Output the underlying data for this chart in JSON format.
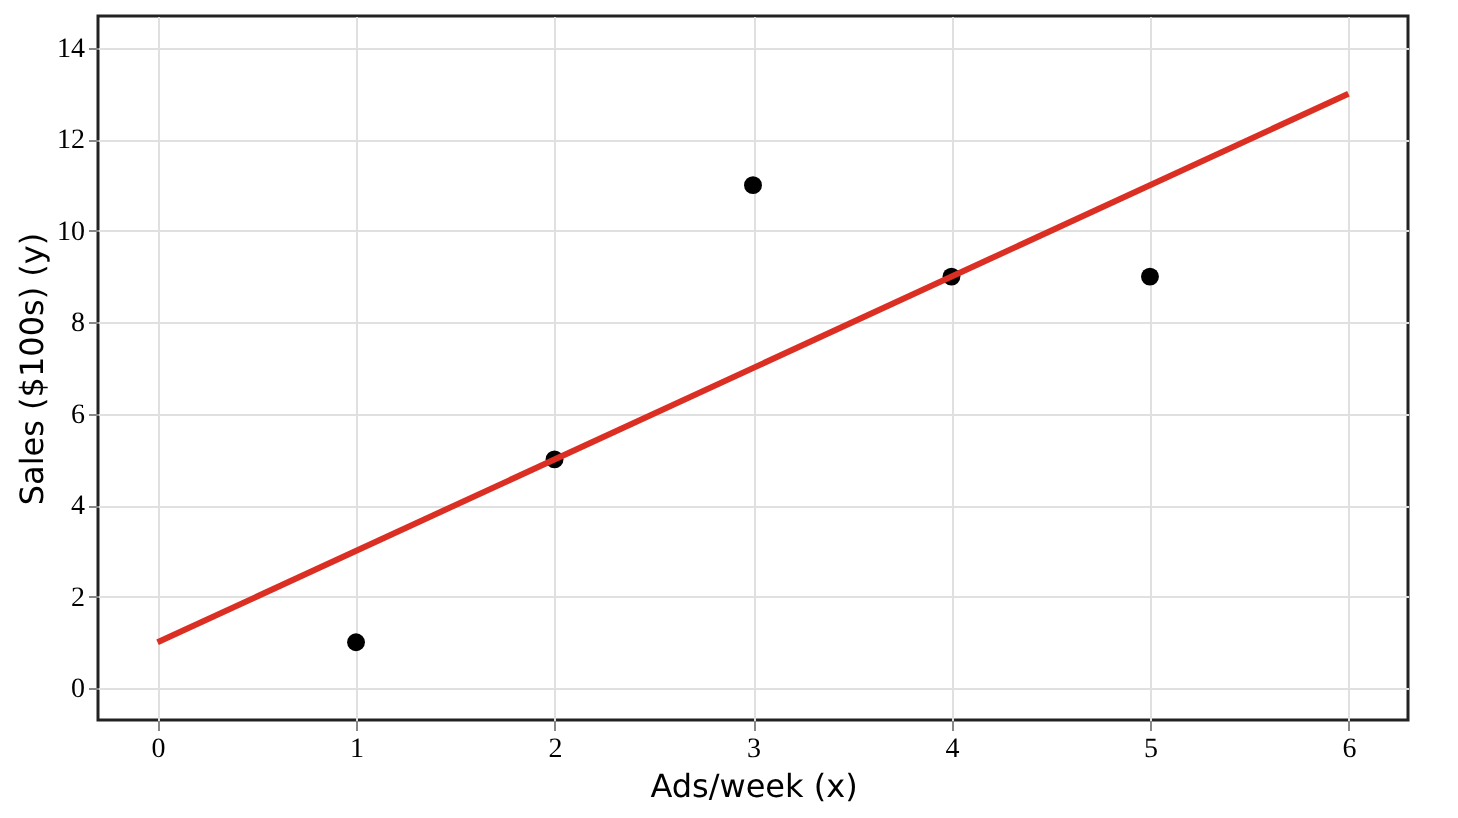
{
  "chart_data": {
    "type": "scatter",
    "xlabel": "Ads/week (x)",
    "ylabel": "Sales ($100s) (y)",
    "xlim": [
      -0.3,
      6.3
    ],
    "ylim": [
      -0.7,
      14.7
    ],
    "xticks": [
      0,
      1,
      2,
      3,
      4,
      5,
      6
    ],
    "yticks": [
      0,
      2,
      4,
      6,
      8,
      10,
      12,
      14
    ],
    "grid": true,
    "series": [
      {
        "color": "#000000",
        "marker": "circle",
        "x": [
          1,
          2,
          3,
          4,
          5
        ],
        "values": [
          1,
          5,
          11,
          9,
          9
        ]
      },
      {
        "type": "line",
        "color": "#dc2f24",
        "x": [
          0,
          6
        ],
        "values": [
          1,
          13
        ],
        "line_style": "solid"
      }
    ]
  }
}
